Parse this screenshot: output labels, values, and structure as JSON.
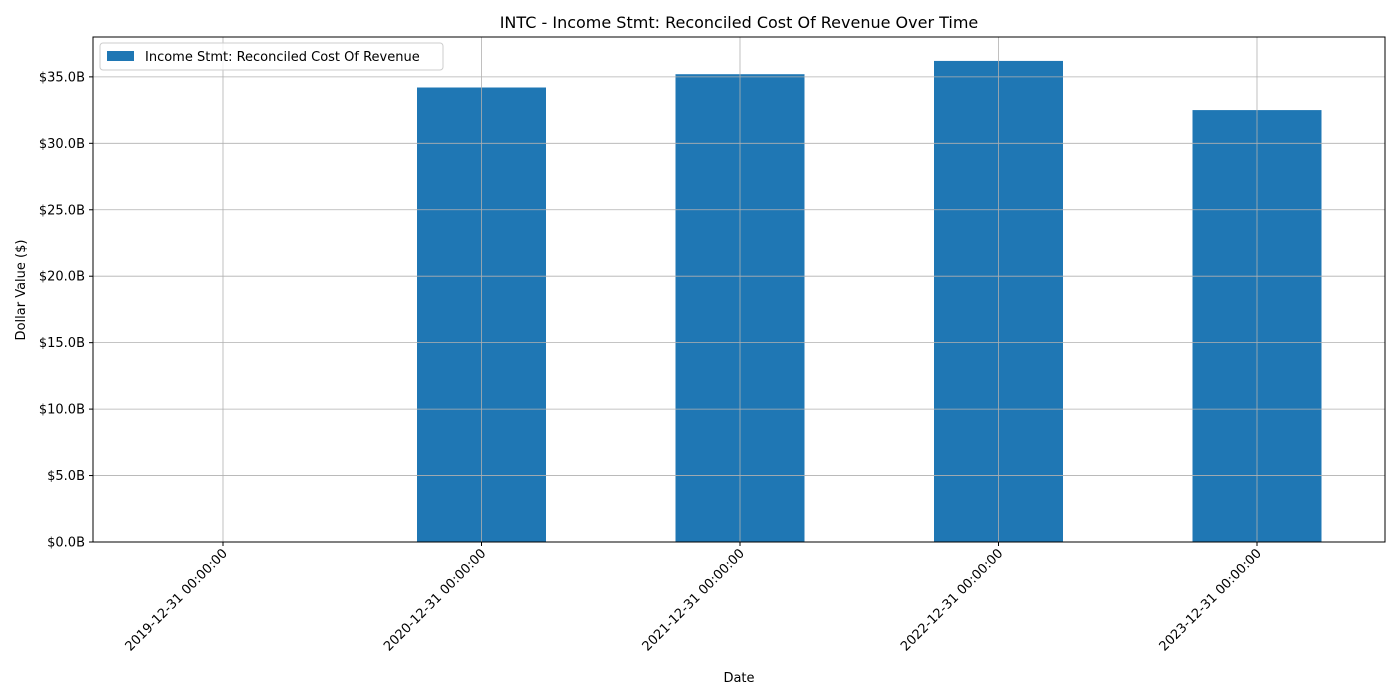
{
  "chart_data": {
    "type": "bar",
    "title": "INTC - Income Stmt: Reconciled Cost Of Revenue Over Time",
    "xlabel": "Date",
    "ylabel": "Dollar Value ($)",
    "categories": [
      "2019-12-31 00:00:00",
      "2020-12-31 00:00:00",
      "2021-12-31 00:00:00",
      "2022-12-31 00:00:00",
      "2023-12-31 00:00:00"
    ],
    "series": [
      {
        "name": "Income Stmt: Reconciled Cost Of Revenue",
        "values": [
          0,
          34.2,
          35.2,
          36.2,
          32.5
        ],
        "unit": "B",
        "color": "#1f77b4"
      }
    ],
    "ylim": [
      0,
      38
    ],
    "yticks": [
      0,
      5,
      10,
      15,
      20,
      25,
      30,
      35
    ],
    "ytick_labels": [
      "$0.0B",
      "$5.0B",
      "$10.0B",
      "$15.0B",
      "$20.0B",
      "$25.0B",
      "$30.0B",
      "$35.0B"
    ],
    "grid": true,
    "legend_position": "top-left"
  }
}
